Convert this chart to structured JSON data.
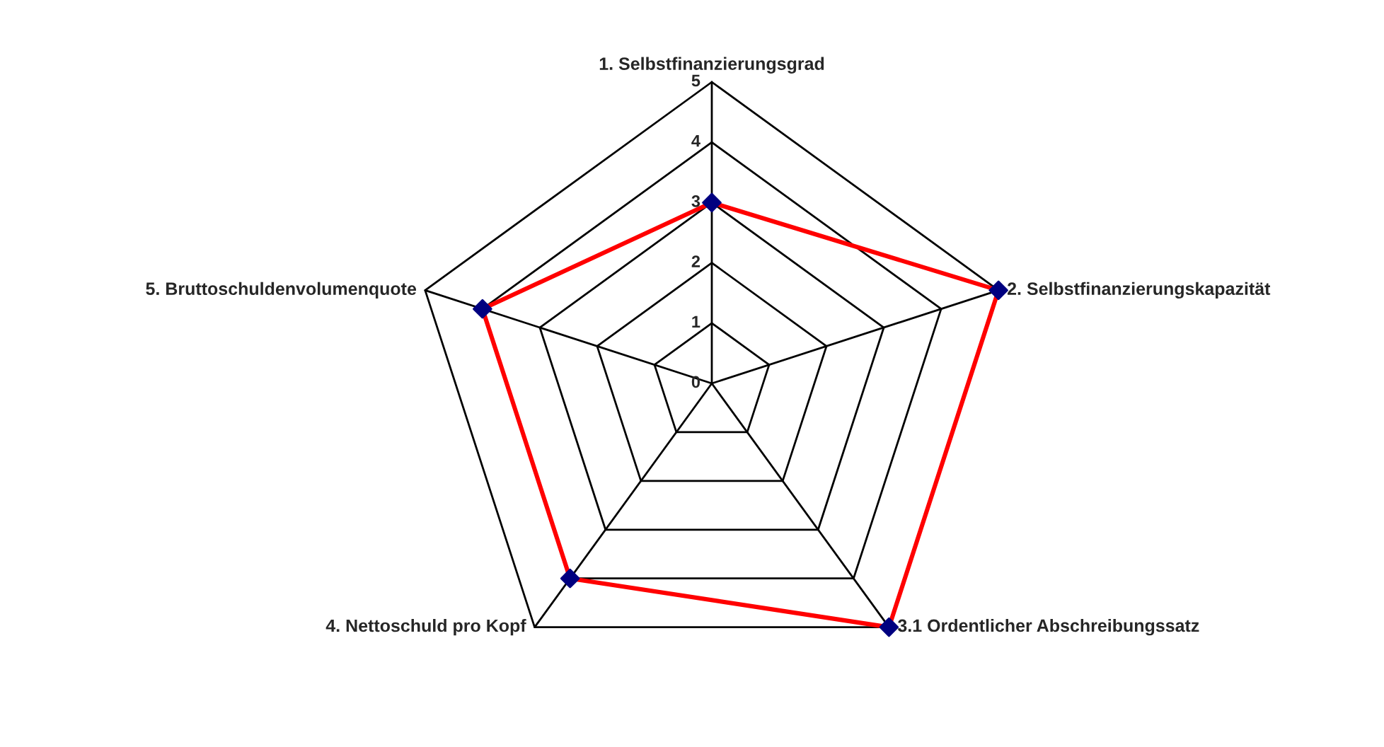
{
  "chart_data": {
    "type": "radar",
    "categories": [
      "1. Selbstfinanzierungsgrad",
      "2. Selbstfinanzierungskapazität",
      "3.1 Ordentlicher Abschreibungssatz",
      "4. Nettoschuld pro Kopf",
      "5. Bruttoschuldenvolumenquote"
    ],
    "series": [
      {
        "color": "#ff0000",
        "colors": [
          "#000080",
          "#000080",
          "#000080",
          "#000080",
          "#000080"
        ],
        "values": [
          3,
          5,
          5,
          4,
          4
        ]
      }
    ],
    "ylim": [
      0,
      5
    ],
    "yticks": [
      0,
      1,
      2,
      3,
      4,
      5
    ],
    "grid": true,
    "marker": "diamond",
    "line_style": "solid"
  }
}
